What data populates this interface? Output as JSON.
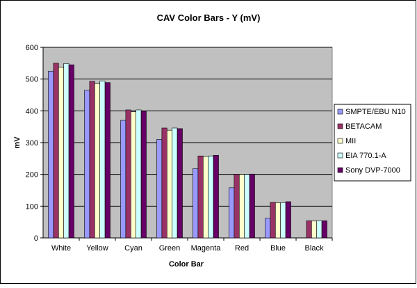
{
  "chart_data": {
    "type": "bar",
    "title": "CAV Color Bars - Y (mV)",
    "xlabel": "Color Bar",
    "ylabel": "mV",
    "ylim": [
      0,
      600
    ],
    "yticks": [
      0,
      100,
      200,
      300,
      400,
      500,
      600
    ],
    "grid": true,
    "legend_position": "right",
    "plot_background": "#c0c0c0",
    "categories": [
      "White",
      "Yellow",
      "Cyan",
      "Green",
      "Magenta",
      "Red",
      "Blue",
      "Black"
    ],
    "series": [
      {
        "name": "SMPTE/EBU N10",
        "color": "#9999ff",
        "values": [
          525,
          465,
          370,
          310,
          218,
          158,
          62,
          0
        ]
      },
      {
        "name": "BETACAM",
        "color": "#993366",
        "values": [
          550,
          493,
          403,
          346,
          258,
          200,
          112,
          54
        ]
      },
      {
        "name": "MII",
        "color": "#ffffcc",
        "values": [
          537,
          485,
          397,
          339,
          256,
          200,
          110,
          53
        ]
      },
      {
        "name": "EIA 770.1-A",
        "color": "#ccffff",
        "values": [
          549,
          494,
          403,
          346,
          258,
          200,
          111,
          54
        ]
      },
      {
        "name": "Sony DVP-7000",
        "color": "#660066",
        "values": [
          545,
          489,
          399,
          344,
          260,
          201,
          114,
          54
        ]
      }
    ]
  }
}
